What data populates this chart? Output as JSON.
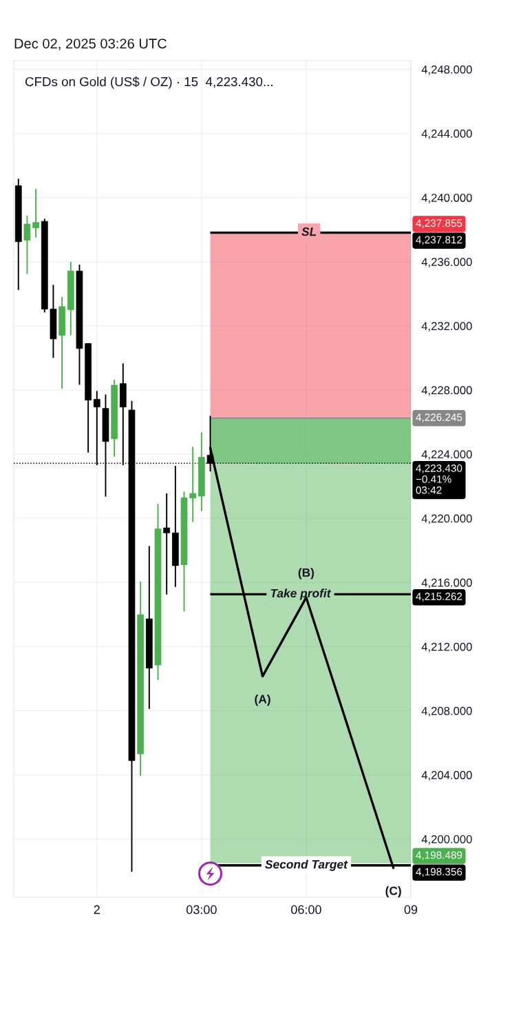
{
  "chart_data": {
    "type": "candlestick",
    "title": "CFDs on Gold (US$ / OZ) · 15  4,223.430...",
    "annotations": [
      "Dec 02, 2025 03:26 UTC",
      {
        "text": "SL",
        "x": "2025-12-02T06:05",
        "y": 4237.812
      },
      {
        "text": "Take profit",
        "x": "2025-12-02T05:50",
        "y": 4215.262
      },
      {
        "text": "Second Target",
        "x": "2025-12-02T06:00",
        "y": 4198.356
      },
      {
        "text": "(A)",
        "x": "2025-12-02T04:45",
        "y": 4210.15
      },
      {
        "text": "(B)",
        "x": "2025-12-02T06:00",
        "y": 4215.06
      },
      {
        "text": "(C)",
        "x": "2025-12-02T08:30",
        "y": 4198.2
      }
    ],
    "x": [
      "2025-12-01T21:45",
      "2025-12-01T22:00",
      "2025-12-01T22:15",
      "2025-12-01T22:30",
      "2025-12-01T22:45",
      "2025-12-01T23:00",
      "2025-12-01T23:15",
      "2025-12-01T23:30",
      "2025-12-01T23:45",
      "2025-12-02T00:00",
      "2025-12-02T00:15",
      "2025-12-02T00:30",
      "2025-12-02T00:45",
      "2025-12-02T01:00",
      "2025-12-02T01:15",
      "2025-12-02T01:30",
      "2025-12-02T01:45",
      "2025-12-02T02:00",
      "2025-12-02T02:15",
      "2025-12-02T02:30",
      "2025-12-02T02:45",
      "2025-12-02T03:00",
      "2025-12-02T03:15"
    ],
    "ohlc": [
      [
        4240.74,
        4241.17,
        4234.24,
        4237.25
      ],
      [
        4237.34,
        4238.88,
        4235.24,
        4238.35
      ],
      [
        4238.11,
        4240.54,
        4237.51,
        4238.45
      ],
      [
        4238.52,
        4238.68,
        4232.84,
        4233.05
      ],
      [
        4233.05,
        4234.56,
        4230.0,
        4231.19
      ],
      [
        4231.41,
        4233.8,
        4228.08,
        4233.2
      ],
      [
        4233.01,
        4235.99,
        4231.41,
        4235.42
      ],
      [
        4235.42,
        4235.82,
        4228.33,
        4230.59
      ],
      [
        4230.9,
        4230.9,
        4224.1,
        4227.37
      ],
      [
        4227.42,
        4227.94,
        4223.31,
        4226.94
      ],
      [
        4226.85,
        4227.72,
        4221.35,
        4224.79
      ],
      [
        4224.96,
        4228.64,
        4223.84,
        4228.3
      ],
      [
        4228.4,
        4229.66,
        4223.31,
        4226.94
      ],
      [
        4226.75,
        4227.32,
        4197.96,
        4204.89
      ],
      [
        4205.31,
        4216.05,
        4203.94,
        4213.99
      ],
      [
        4213.73,
        4218.27,
        4208.11,
        4210.66
      ],
      [
        4210.85,
        4220.9,
        4209.92,
        4219.34
      ],
      [
        4219.4,
        4221.55,
        4215.25,
        4219.09
      ],
      [
        4219.09,
        4223.27,
        4215.72,
        4217.05
      ],
      [
        4217.11,
        4221.66,
        4214.19,
        4221.28
      ],
      [
        4221.26,
        4224.46,
        4219.77,
        4221.55
      ],
      [
        4221.38,
        4225.36,
        4220.45,
        4223.81
      ],
      [
        4223.93,
        4226.39,
        4222.92,
        4223.43
      ]
    ],
    "colors": [
      "#000000",
      "#4caf50",
      "#4caf50",
      "#000000",
      "#000000",
      "#4caf50",
      "#4caf50",
      "#000000",
      "#000000",
      "#000000",
      "#000000",
      "#4caf50",
      "#000000",
      "#000000",
      "#4caf50",
      "#000000",
      "#4caf50",
      "#000000",
      "#000000",
      "#4caf50",
      "#4caf50",
      "#4caf50",
      "#000000"
    ],
    "series": [
      {
        "type": "line",
        "x": [
          "2025-12-02T03:15",
          "2025-12-02T04:45",
          "2025-12-02T06:00",
          "2025-12-02T08:30"
        ],
        "values": [
          4224.39,
          4210.15,
          4215.06,
          4198.2
        ],
        "color": "#000000"
      }
    ],
    "xlim": [
      "2025-12-01T21:37",
      "2025-12-02T09:00"
    ],
    "ylim": [
      4196.37,
      4248.54
    ],
    "xticks": [
      {
        "value": "2025-12-02T00:00",
        "label": "2"
      },
      {
        "value": "2025-12-02T03:00",
        "label": "03:00"
      },
      {
        "value": "2025-12-02T06:00",
        "label": "06:00"
      },
      {
        "value": "2025-12-02T09:00",
        "label": "09"
      }
    ],
    "yticks": [
      {
        "value": 4248,
        "label": "4,248.000"
      },
      {
        "value": 4244,
        "label": "4,244.000"
      },
      {
        "value": 4240,
        "label": "4,240.000"
      },
      {
        "value": 4236,
        "label": "4,236.000"
      },
      {
        "value": 4232,
        "label": "4,232.000"
      },
      {
        "value": 4228,
        "label": "4,228.000"
      },
      {
        "value": 4224,
        "label": "4,224.000"
      },
      {
        "value": 4220,
        "label": "4,220.000"
      },
      {
        "value": 4216,
        "label": "4,216.000"
      },
      {
        "value": 4212,
        "label": "4,212.000"
      },
      {
        "value": 4208,
        "label": "4,208.000"
      },
      {
        "value": 4204,
        "label": "4,204.000"
      },
      {
        "value": 4200,
        "label": "4,200.000"
      }
    ],
    "ref_lines": [
      {
        "axis": "y",
        "value": 4237.812,
        "label": "4,237.812",
        "color": "#000000"
      },
      {
        "axis": "y",
        "value": 4226.245,
        "label": "4,226.245",
        "color": "#868686"
      },
      {
        "axis": "y",
        "value": 4223.43,
        "label": "4,223.430\n−0.41%\n03:42",
        "color": "#000000",
        "line_style": "dotted"
      },
      {
        "axis": "y",
        "value": 4215.262,
        "label": "4,215.262",
        "color": "#000000"
      },
      {
        "axis": "y",
        "value": 4198.356,
        "label": "4,198.356",
        "color": "#000000"
      }
    ],
    "bands": [
      {
        "axis": "y",
        "from": 4226.245,
        "to": 4237.855,
        "label": "4,237.855",
        "color": "#f23645"
      },
      {
        "axis": "y",
        "from": 4226.245,
        "to": 4198.489,
        "label": "4,198.489",
        "color": "#4caf50"
      },
      {
        "axis": "y",
        "from": 4226.245,
        "to": 4223.43,
        "color": "#4caf50"
      }
    ],
    "grid": true
  }
}
